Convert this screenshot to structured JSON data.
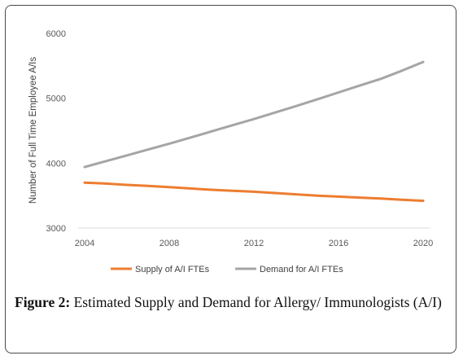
{
  "caption": {
    "label": "Figure 2:",
    "text": "Estimated Supply and Demand for Allergy/ Immunologists (A/I)"
  },
  "chart_data": {
    "type": "line",
    "title": "",
    "xlabel": "",
    "ylabel": "Number of Full Time Employee A/Is",
    "xlim": [
      2004,
      2020
    ],
    "ylim": [
      3000,
      6000
    ],
    "x_ticks": [
      "2004",
      "2008",
      "2012",
      "2016",
      "2020"
    ],
    "y_ticks": [
      "3000",
      "4000",
      "5000",
      "6000"
    ],
    "grid": false,
    "legend": "bottom",
    "x": [
      2004,
      2005,
      2006,
      2007,
      2008,
      2009,
      2010,
      2011,
      2012,
      2013,
      2014,
      2015,
      2016,
      2017,
      2018,
      2019,
      2020
    ],
    "series": [
      {
        "name": "Supply of A/I FTEs",
        "color": "#ed7d31",
        "values": [
          3700,
          3685,
          3665,
          3650,
          3630,
          3610,
          3590,
          3575,
          3560,
          3540,
          3520,
          3500,
          3485,
          3470,
          3455,
          3435,
          3420
        ]
      },
      {
        "name": "Demand for A/I FTEs",
        "color": "#a5a5a5",
        "values": [
          3940,
          4030,
          4120,
          4210,
          4300,
          4395,
          4490,
          4585,
          4680,
          4780,
          4880,
          4985,
          5090,
          5195,
          5300,
          5425,
          5560
        ]
      }
    ]
  }
}
